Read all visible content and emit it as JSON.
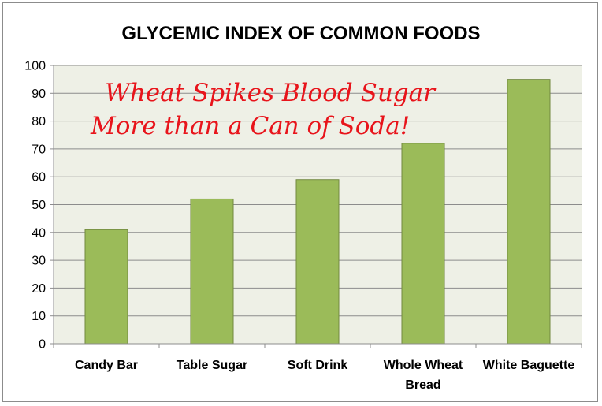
{
  "chart_data": {
    "type": "bar",
    "title": "GLYCEMIC INDEX OF COMMON FOODS",
    "categories": [
      [
        "Candy Bar"
      ],
      [
        "Table Sugar"
      ],
      [
        "Soft Drink"
      ],
      [
        "Whole Wheat",
        "Bread"
      ],
      [
        "White Baguette"
      ]
    ],
    "values": [
      41,
      52,
      59,
      72,
      95
    ],
    "ylim": [
      0,
      100
    ],
    "yticks": [
      0,
      10,
      20,
      30,
      40,
      50,
      60,
      70,
      80,
      90,
      100
    ],
    "grid": true,
    "annotation": [
      "Wheat Spikes Blood Sugar",
      "More than a Can of Soda!"
    ],
    "colors": {
      "bar_fill": "#9bbb59",
      "bar_stroke": "#71893f",
      "plot_background": "#eef0e6",
      "gridline": "#8c8c8c",
      "annotation": "#e8141b"
    }
  }
}
